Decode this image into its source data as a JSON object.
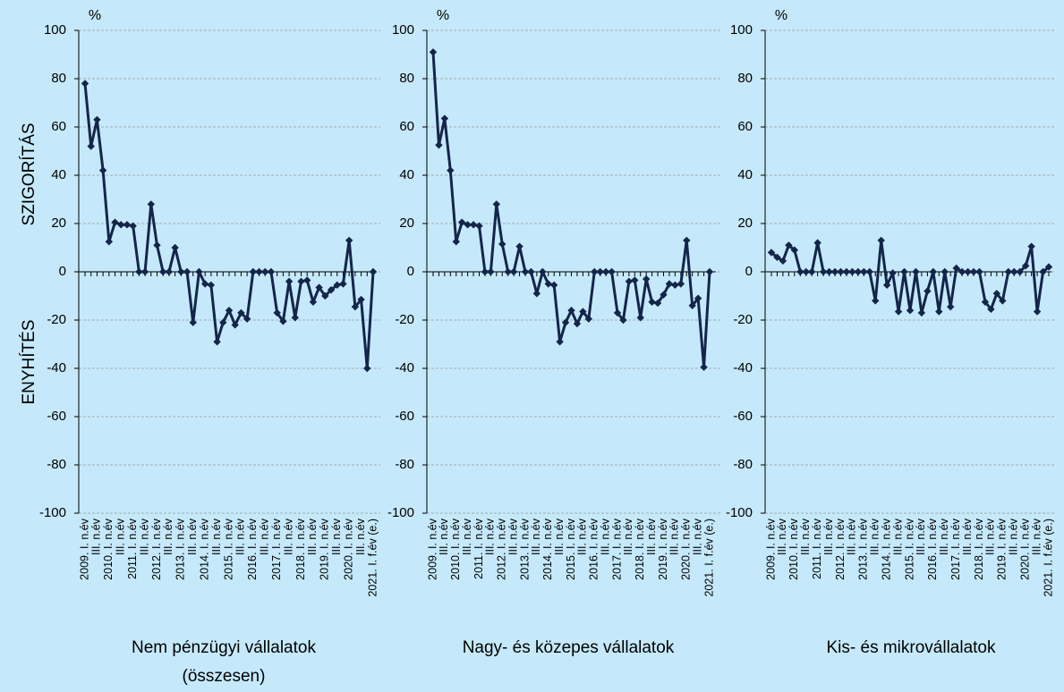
{
  "chart_data": [
    {
      "type": "line",
      "title": "Nem pénzügyi vállalatok (összesen)",
      "y_unit": "%",
      "y_annotations": [
        "SZIGORÍTÁS",
        "ENYHÍTÉS"
      ],
      "categories": [
        "2009. I. n.év",
        null,
        "III. n.év",
        null,
        "2010. I. n.év",
        null,
        "III. n.év",
        null,
        "2011. I. n.év",
        null,
        "III. n.év",
        null,
        "2012. I. n.év",
        null,
        "III. n.év",
        null,
        "2013. I. n.év",
        null,
        "III. n.év",
        null,
        "2014. I. n.év",
        null,
        "III. n.év",
        null,
        "2015. I. n.év",
        null,
        "III. n.év",
        null,
        "2016. I. n.év",
        null,
        "III. n.év",
        null,
        "2017. I. n.év",
        null,
        "III. n.év",
        null,
        "2018. I. n.év",
        null,
        "III. n.év",
        null,
        "2019. I. n.év",
        null,
        "III. n.év",
        null,
        "2020. I. n.év",
        null,
        "III. n.év",
        null,
        "2021. I. f.év (e.)"
      ],
      "series": [
        {
          "color": "#14254a",
          "values": [
            78,
            52,
            63,
            42,
            12.5,
            20.5,
            19.5,
            19.5,
            19,
            0,
            0,
            28,
            11,
            0,
            0,
            10,
            0,
            0,
            -21,
            0,
            -5,
            -5.5,
            -29,
            -21,
            -16,
            -22,
            -17,
            -19.5,
            0,
            0,
            0,
            0,
            -17,
            -20.5,
            -4,
            -19,
            -4,
            -3.5,
            -12.5,
            -6.5,
            -10,
            -7.5,
            -5.5,
            -5,
            13,
            -14.5,
            -11.5,
            -40,
            0
          ]
        }
      ],
      "ylim": [
        -100,
        100
      ],
      "yticks": [
        -100,
        -80,
        -60,
        -40,
        -20,
        0,
        20,
        40,
        60,
        80,
        100
      ],
      "grid": true
    },
    {
      "type": "line",
      "title": "Nagy- és közepes vállalatok",
      "y_unit": "%",
      "categories": [
        "2009. I. n.év",
        null,
        "III. n.év",
        null,
        "2010. I. n.év",
        null,
        "III. n.év",
        null,
        "2011. I. n.év",
        null,
        "III. n.év",
        null,
        "2012. I. n.év",
        null,
        "III. n.év",
        null,
        "2013. I. n.év",
        null,
        "III. n.év",
        null,
        "2014. I. n.év",
        null,
        "III. n.év",
        null,
        "2015. I. n.év",
        null,
        "III. n.év",
        null,
        "2016. I. n.év",
        null,
        "III. n.év",
        null,
        "2017. I. n.év",
        null,
        "III. n.év",
        null,
        "2018. I. n.év",
        null,
        "III. n.év",
        null,
        "2019. I. n.év",
        null,
        "III. n.év",
        null,
        "2020. I. n.év",
        null,
        "III. n.év",
        null,
        "2021. I. f.év (e.)"
      ],
      "series": [
        {
          "color": "#14254a",
          "values": [
            91,
            52.5,
            63.5,
            42,
            12.5,
            20.5,
            19.5,
            19.5,
            19,
            0,
            0,
            28,
            11.5,
            0,
            0,
            10.5,
            0,
            0,
            -9,
            0,
            -5,
            -5.5,
            -29,
            -21,
            -16,
            -21.5,
            -16.5,
            -19.5,
            0,
            0,
            0,
            0,
            -17,
            -20,
            -4,
            -3.5,
            -19,
            -3,
            -12.5,
            -13,
            -9.5,
            -5,
            -5.5,
            -5,
            13,
            -14,
            -11,
            -39.5,
            0
          ]
        }
      ],
      "ylim": [
        -100,
        100
      ],
      "yticks": [
        -100,
        -80,
        -60,
        -40,
        -20,
        0,
        20,
        40,
        60,
        80,
        100
      ],
      "grid": true
    },
    {
      "type": "line",
      "title": "Kis- és mikrovállalatok",
      "y_unit": "%",
      "categories": [
        "2009. I. n.év",
        null,
        "III. n.év",
        null,
        "2010. I. n.év",
        null,
        "III. n.év",
        null,
        "2011. I. n.év",
        null,
        "III. n.év",
        null,
        "2012. I. n.év",
        null,
        "III. n.év",
        null,
        "2013. I. n.év",
        null,
        "III. n.év",
        null,
        "2014. I. n.év",
        null,
        "III. n.év",
        null,
        "2015. I. n.év",
        null,
        "III. n.év",
        null,
        "2016. I. n.év",
        null,
        "III. n.év",
        null,
        "2017. I. n.év",
        null,
        "III. n.év",
        null,
        "2018. I. n.év",
        null,
        "III. n.év",
        null,
        "2019. I. n.év",
        null,
        "III. n.év",
        null,
        "2020. I. n.év",
        null,
        "III. n.év",
        null,
        "2021. I. f.év (e.)"
      ],
      "series": [
        {
          "color": "#14254a",
          "values": [
            8,
            6,
            4.5,
            11,
            9,
            0,
            0,
            0,
            12,
            0,
            0,
            0,
            0,
            0,
            0,
            0,
            0,
            0,
            -12,
            13,
            -5.5,
            -0.5,
            -16.5,
            0,
            -16,
            0,
            -17,
            -8,
            0,
            -16.5,
            0,
            -14.5,
            1.5,
            0,
            0,
            0,
            0,
            -12.5,
            -15.5,
            -9,
            -12,
            0,
            0,
            0,
            2.5,
            10.5,
            -16.5,
            0,
            2
          ]
        }
      ],
      "ylim": [
        -100,
        100
      ],
      "yticks": [
        -100,
        -80,
        -60,
        -40,
        -20,
        0,
        20,
        40,
        60,
        80,
        100
      ],
      "grid": true
    }
  ]
}
